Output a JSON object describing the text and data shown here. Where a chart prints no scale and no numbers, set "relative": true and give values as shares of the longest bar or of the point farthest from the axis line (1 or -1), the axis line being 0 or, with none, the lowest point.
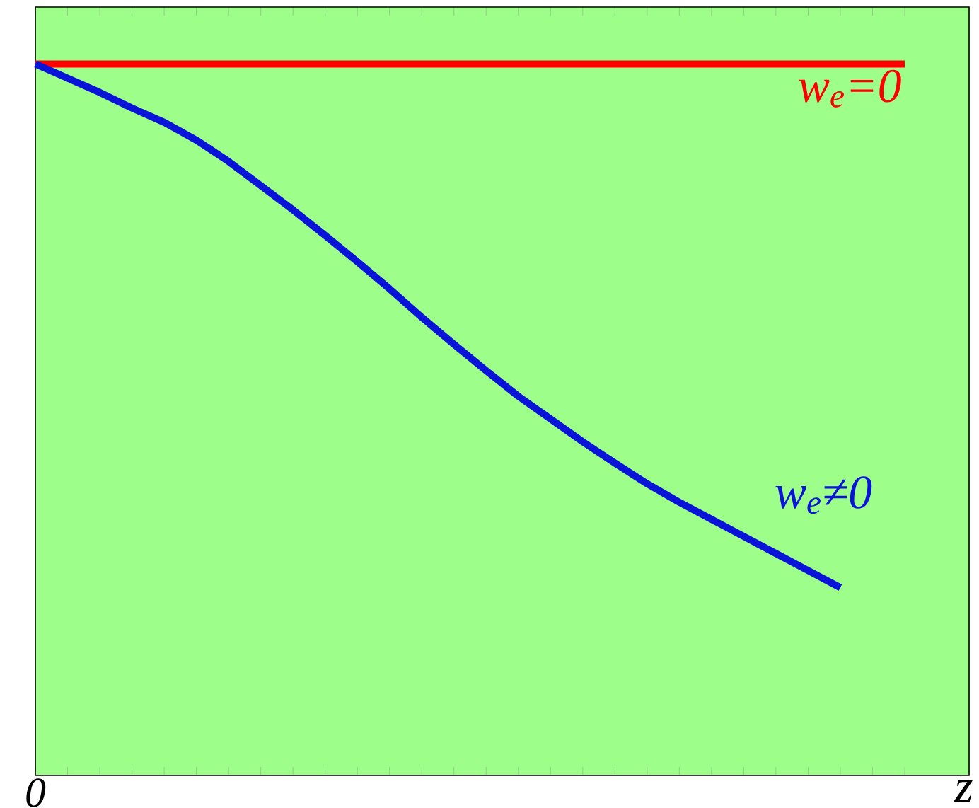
{
  "chart_data": {
    "type": "line",
    "relative": true,
    "xlabel": "z",
    "annotations": [
      "0"
    ],
    "categories": [
      null,
      null,
      null,
      null,
      null,
      null,
      null,
      null,
      null,
      null,
      null,
      null,
      null,
      null,
      null,
      null,
      null,
      null,
      null,
      null,
      null,
      null,
      null,
      null,
      null,
      null,
      null,
      null
    ],
    "series": [
      {
        "name": "w$_{e}$=0",
        "color": "#ff0000",
        "values": [
          1,
          1,
          1,
          1,
          1,
          1,
          1,
          1,
          1,
          1,
          1,
          1,
          1,
          1,
          1,
          1,
          1,
          1,
          1,
          1,
          1,
          1,
          1,
          1,
          1,
          1,
          1,
          1
        ]
      },
      {
        "name": "w$_{e}$≠0",
        "color": "#0a14d8",
        "values": [
          1.0,
          0.98,
          0.96,
          0.938,
          0.918,
          0.893,
          0.863,
          0.829,
          0.795,
          0.759,
          0.722,
          0.684,
          0.644,
          0.606,
          0.569,
          0.533,
          0.501,
          0.469,
          0.439,
          0.41,
          0.384,
          0.36,
          0.336,
          0.312,
          0.288,
          0.264,
          null,
          null
        ]
      }
    ]
  }
}
